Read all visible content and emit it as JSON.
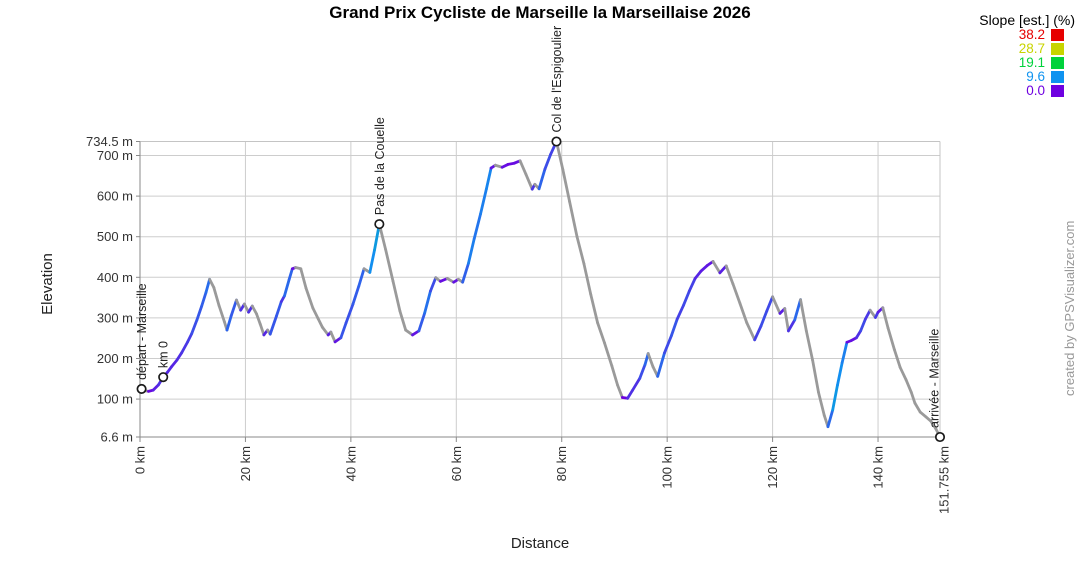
{
  "title": "Grand Prix Cycliste de Marseille la Marseillaise 2026",
  "watermark": "created by GPSVisualizer.com",
  "axes": {
    "x_title": "Distance",
    "y_title": "Elevation",
    "x_ticks": [
      {
        "km": 0,
        "label": "0 km"
      },
      {
        "km": 20,
        "label": "20 km"
      },
      {
        "km": 40,
        "label": "40 km"
      },
      {
        "km": 60,
        "label": "60 km"
      },
      {
        "km": 80,
        "label": "80 km"
      },
      {
        "km": 100,
        "label": "100 km"
      },
      {
        "km": 120,
        "label": "120 km"
      },
      {
        "km": 140,
        "label": "140 km"
      },
      {
        "km": 151.755,
        "label": "151.755 km"
      }
    ],
    "y_ticks": [
      {
        "m": 734.5,
        "label": "734.5 m"
      },
      {
        "m": 700,
        "label": "700 m"
      },
      {
        "m": 600,
        "label": "600 m"
      },
      {
        "m": 500,
        "label": "500 m"
      },
      {
        "m": 400,
        "label": "400 m"
      },
      {
        "m": 300,
        "label": "300 m"
      },
      {
        "m": 200,
        "label": "200 m"
      },
      {
        "m": 100,
        "label": "100 m"
      },
      {
        "m": 6.6,
        "label": "6.6 m"
      }
    ]
  },
  "legend": {
    "title": "Slope [est.] (%)",
    "entries": [
      {
        "label": "38.2",
        "color": "#e60000"
      },
      {
        "label": "28.7",
        "color": "#c8d400"
      },
      {
        "label": "19.1",
        "color": "#00d23c"
      },
      {
        "label": "9.6",
        "color": "#0f93f0"
      },
      {
        "label": "0.0",
        "color": "#6e00e0"
      }
    ]
  },
  "chart_data": {
    "type": "line",
    "title": "Grand Prix Cycliste de Marseille la Marseillaise 2026",
    "xlabel": "Distance",
    "ylabel": "Elevation",
    "x_unit": "km",
    "y_unit": "m",
    "xlim": [
      0,
      151.755
    ],
    "ylim": [
      6.6,
      734.5
    ],
    "grid": true,
    "grid_color": "#cdcdcd",
    "axis_color": "#8a8a8a",
    "descent_color": "#9a9a9a",
    "tick_label_color": "#333333",
    "slope_color_stops": [
      [
        0,
        "#6e00e0"
      ],
      [
        9.6,
        "#0f93f0"
      ],
      [
        19.1,
        "#00d23c"
      ],
      [
        28.7,
        "#c8d400"
      ],
      [
        38.2,
        "#e60000"
      ]
    ],
    "profile_km_m": [
      [
        0,
        125
      ],
      [
        0.8,
        121
      ],
      [
        1.6,
        119
      ],
      [
        2.5,
        122
      ],
      [
        3.5,
        135
      ],
      [
        4.4,
        154
      ],
      [
        5.2,
        166
      ],
      [
        6,
        180
      ],
      [
        7,
        196
      ],
      [
        7.9,
        214
      ],
      [
        9,
        240
      ],
      [
        9.8,
        261
      ],
      [
        10.8,
        295
      ],
      [
        11.7,
        329
      ],
      [
        12.5,
        362
      ],
      [
        13.2,
        395
      ],
      [
        14,
        375
      ],
      [
        15,
        330
      ],
      [
        16,
        291
      ],
      [
        16.5,
        270
      ],
      [
        17.3,
        305
      ],
      [
        18.3,
        344
      ],
      [
        19.1,
        319
      ],
      [
        19.8,
        334
      ],
      [
        20.6,
        314
      ],
      [
        21.3,
        329
      ],
      [
        22.1,
        310
      ],
      [
        22.8,
        285
      ],
      [
        23.5,
        258
      ],
      [
        24.2,
        270
      ],
      [
        24.7,
        260
      ],
      [
        25.9,
        305
      ],
      [
        26.8,
        340
      ],
      [
        27.4,
        354
      ],
      [
        28.3,
        395
      ],
      [
        28.9,
        421
      ],
      [
        29.5,
        424
      ],
      [
        30.5,
        421
      ],
      [
        31.5,
        373
      ],
      [
        32.8,
        324
      ],
      [
        33.8,
        298
      ],
      [
        34.6,
        277
      ],
      [
        35.7,
        258
      ],
      [
        36.2,
        265
      ],
      [
        37,
        241
      ],
      [
        38.1,
        251
      ],
      [
        39.1,
        288
      ],
      [
        40.4,
        334
      ],
      [
        41.5,
        378
      ],
      [
        42.5,
        421
      ],
      [
        43,
        417
      ],
      [
        43.6,
        412
      ],
      [
        44.5,
        468
      ],
      [
        45.4,
        531
      ],
      [
        46.6,
        468
      ],
      [
        48,
        390
      ],
      [
        49.3,
        317
      ],
      [
        50.4,
        270
      ],
      [
        51.7,
        258
      ],
      [
        52.9,
        268
      ],
      [
        54,
        312
      ],
      [
        55.1,
        366
      ],
      [
        56.1,
        399
      ],
      [
        57,
        390
      ],
      [
        58.3,
        397
      ],
      [
        59.5,
        388
      ],
      [
        60.4,
        395
      ],
      [
        61.2,
        388
      ],
      [
        62.3,
        434
      ],
      [
        63.4,
        495
      ],
      [
        64.6,
        556
      ],
      [
        65.7,
        617
      ],
      [
        66.6,
        669
      ],
      [
        67.4,
        676
      ],
      [
        68.7,
        671
      ],
      [
        69.8,
        678
      ],
      [
        71,
        681
      ],
      [
        72.1,
        687
      ],
      [
        73.2,
        654
      ],
      [
        74.4,
        617
      ],
      [
        74.9,
        629
      ],
      [
        75.7,
        618
      ],
      [
        76.8,
        666
      ],
      [
        77.9,
        703
      ],
      [
        79,
        734.5
      ],
      [
        80.2,
        666
      ],
      [
        81.5,
        586
      ],
      [
        82.9,
        500
      ],
      [
        84.2,
        434
      ],
      [
        85.5,
        358
      ],
      [
        86.8,
        288
      ],
      [
        88.1,
        239
      ],
      [
        89.5,
        182
      ],
      [
        90.6,
        134
      ],
      [
        91.5,
        104
      ],
      [
        92.5,
        102
      ],
      [
        93.4,
        121
      ],
      [
        94.8,
        151
      ],
      [
        95.8,
        185
      ],
      [
        96.4,
        212
      ],
      [
        97.3,
        180
      ],
      [
        98.2,
        156
      ],
      [
        99.5,
        214
      ],
      [
        100.8,
        256
      ],
      [
        101.9,
        297
      ],
      [
        103.1,
        331
      ],
      [
        104.2,
        366
      ],
      [
        105.3,
        397
      ],
      [
        106.4,
        415
      ],
      [
        107.6,
        429
      ],
      [
        108.7,
        439
      ],
      [
        110,
        411
      ],
      [
        111.2,
        428
      ],
      [
        112.5,
        383
      ],
      [
        113.8,
        336
      ],
      [
        115.1,
        288
      ],
      [
        116.6,
        246
      ],
      [
        117.8,
        280
      ],
      [
        118.9,
        317
      ],
      [
        120,
        352
      ],
      [
        121.4,
        311
      ],
      [
        122.3,
        323
      ],
      [
        123,
        268
      ],
      [
        124.2,
        295
      ],
      [
        125.3,
        345
      ],
      [
        126.4,
        268
      ],
      [
        127.6,
        195
      ],
      [
        128.7,
        117
      ],
      [
        129.8,
        60
      ],
      [
        130.5,
        32
      ],
      [
        131.4,
        73
      ],
      [
        132.3,
        134
      ],
      [
        133.2,
        190
      ],
      [
        134.1,
        240
      ],
      [
        134.9,
        244
      ],
      [
        135.9,
        251
      ],
      [
        136.7,
        268
      ],
      [
        137.6,
        297
      ],
      [
        138.5,
        319
      ],
      [
        139.5,
        301
      ],
      [
        140,
        314
      ],
      [
        140.9,
        325
      ],
      [
        141.9,
        275
      ],
      [
        143.1,
        222
      ],
      [
        144.2,
        178
      ],
      [
        145.3,
        148
      ],
      [
        146.3,
        117
      ],
      [
        147,
        90
      ],
      [
        148,
        68
      ],
      [
        149.1,
        56
      ],
      [
        150,
        46
      ],
      [
        151,
        26
      ],
      [
        151.755,
        6.6
      ]
    ],
    "waypoints": [
      {
        "name": "départ - Marseille",
        "km": 0.3,
        "m": 125
      },
      {
        "name": "km 0",
        "km": 4.4,
        "m": 154
      },
      {
        "name": "Pas de la Couelle",
        "km": 45.4,
        "m": 531
      },
      {
        "name": "Col de l'Espigoulier",
        "km": 79,
        "m": 734.5
      },
      {
        "name": "arrivée - Marseille",
        "km": 151.755,
        "m": 6.6
      }
    ]
  }
}
